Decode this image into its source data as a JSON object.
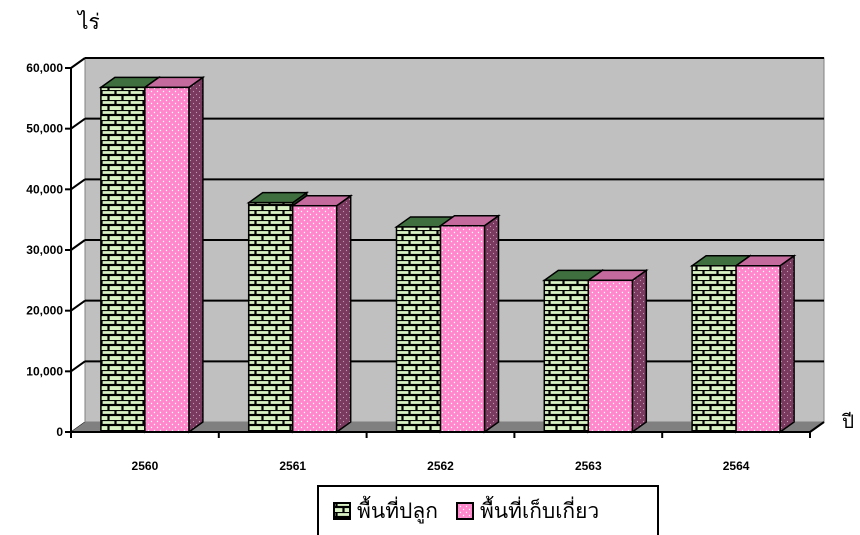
{
  "chart_data": {
    "type": "bar",
    "title": "",
    "ylabel": "ไร่",
    "xlabel": "ปี",
    "categories": [
      "2560",
      "2561",
      "2562",
      "2563",
      "2564"
    ],
    "series": [
      {
        "name": "พื้นที่ปลูก",
        "values": [
          56800,
          37800,
          33800,
          25000,
          27400
        ],
        "color": "#d9f2c4",
        "pattern": "brick"
      },
      {
        "name": "พื้นที่เก็บเกี่ยว",
        "values": [
          56800,
          37300,
          34000,
          25000,
          27400
        ],
        "color": "#ff88cc",
        "pattern": "dots"
      }
    ],
    "ylim": [
      0,
      60000
    ],
    "yticks": [
      "0",
      "10,000",
      "20,000",
      "30,000",
      "40,000",
      "50,000",
      "60,000"
    ],
    "grid": true,
    "legend_position": "bottom",
    "three_d": true,
    "wall_color": "#c0c0c0"
  }
}
